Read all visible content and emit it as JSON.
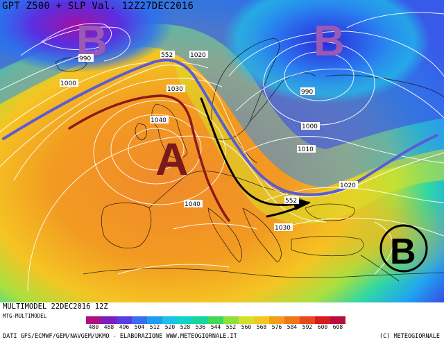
{
  "header": {
    "title": "GPT Z500 + SLP Val. 12Z27DEC2016"
  },
  "map": {
    "pressure_centers": [
      {
        "letter": "B",
        "kind": "low",
        "color": "#9b59b6"
      },
      {
        "letter": "B",
        "kind": "low",
        "color": "#9b59b6"
      },
      {
        "letter": "A",
        "kind": "high",
        "color": "#7b1a1a"
      },
      {
        "letter": "B",
        "kind": "low",
        "color": "#000000"
      }
    ],
    "isobar_labels": [
      "990",
      "1000",
      "552",
      "1020",
      "1030",
      "1040",
      "990",
      "1000",
      "1010",
      "1020",
      "1040",
      "552",
      "1030"
    ],
    "features": [
      {
        "name": "jet-stream-axis",
        "color": "#5b5bd6"
      },
      {
        "name": "ridge-axis",
        "color": "#8b1a1a"
      },
      {
        "name": "cold-air-flow-arrow",
        "color": "#000000"
      }
    ]
  },
  "footer": {
    "run_label": "MULTIMODEL 22DEC2016 12Z",
    "model_label": "MTG-MULTIMODEL",
    "credit": "DATI GFS/ECMWF/GEM/NAVGEM/UKMO - ELABORAZIONE WWW.METEOGIORNALE.IT",
    "copyright": "(C) METEOGIORNALE",
    "legend_values": [
      "480",
      "488",
      "496",
      "504",
      "512",
      "520",
      "528",
      "536",
      "544",
      "552",
      "560",
      "568",
      "576",
      "584",
      "592",
      "600",
      "608"
    ],
    "legend_colors": [
      "#b0107e",
      "#7a1fc0",
      "#5a3de0",
      "#3a6ef0",
      "#1f9cf0",
      "#19c2e6",
      "#12d3c4",
      "#16d79a",
      "#3fd95a",
      "#8fe03a",
      "#d6e02b",
      "#f5c821",
      "#f59c1a",
      "#f0781a",
      "#e8481a",
      "#d61c1c",
      "#b80f3a"
    ]
  }
}
